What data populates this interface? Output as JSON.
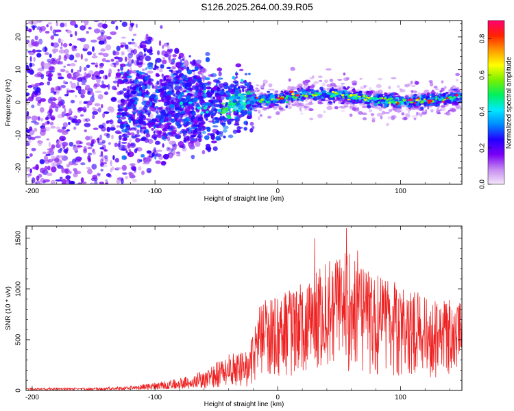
{
  "title": "S126.2025.264.00.39.R05",
  "chart_data": [
    {
      "type": "heatmap",
      "xlabel": "Height of straight line (km)",
      "ylabel": "Frequency (Hz)",
      "xlim": [
        -205,
        150
      ],
      "ylim": [
        -25,
        25
      ],
      "xticks": [
        -200,
        -100,
        0,
        100
      ],
      "yticks": [
        -20,
        -10,
        0,
        10,
        20
      ],
      "colorbar": {
        "label": "Normalized spectral amplitude",
        "range": [
          0.0,
          0.9
        ],
        "ticks": [
          0.0,
          0.2,
          0.4,
          0.6,
          0.8
        ],
        "colors": [
          "#f4e6fb",
          "#c58af0",
          "#7a00f5",
          "#2200ff",
          "#0088ff",
          "#00eaff",
          "#00f060",
          "#7af000",
          "#ffff00",
          "#ff9900",
          "#ff2200",
          "#ff0070"
        ]
      },
      "ridge": [
        {
          "x": -40,
          "f": -1.0
        },
        {
          "x": -25,
          "f": 0.5
        },
        {
          "x": 0,
          "f": 1.0
        },
        {
          "x": 25,
          "f": 2.5
        },
        {
          "x": 50,
          "f": 2.5
        },
        {
          "x": 75,
          "f": 1.0
        },
        {
          "x": 100,
          "f": 0.0
        },
        {
          "x": 125,
          "f": 0.8
        },
        {
          "x": 150,
          "f": 1.5
        }
      ]
    },
    {
      "type": "line",
      "xlabel": "Height of straight line (km)",
      "ylabel": "SNR (10 * v/v)",
      "xlim": [
        -205,
        150
      ],
      "ylim": [
        0,
        1620
      ],
      "xticks": [
        -200,
        -100,
        0,
        100
      ],
      "yticks": [
        0,
        500,
        1000,
        1500
      ],
      "color": "#ee2222",
      "envelope": [
        {
          "x": -205,
          "y": 25
        },
        {
          "x": -150,
          "y": 25
        },
        {
          "x": -120,
          "y": 45
        },
        {
          "x": -100,
          "y": 80
        },
        {
          "x": -80,
          "y": 120
        },
        {
          "x": -60,
          "y": 200
        },
        {
          "x": -50,
          "y": 280
        },
        {
          "x": -40,
          "y": 380
        },
        {
          "x": -25,
          "y": 390
        },
        {
          "x": -15,
          "y": 800
        },
        {
          "x": 0,
          "y": 850
        },
        {
          "x": 20,
          "y": 1000
        },
        {
          "x": 40,
          "y": 1150
        },
        {
          "x": 55,
          "y": 1250
        },
        {
          "x": 80,
          "y": 1050
        },
        {
          "x": 100,
          "y": 950
        },
        {
          "x": 120,
          "y": 850
        },
        {
          "x": 150,
          "y": 800
        }
      ],
      "peaks": [
        {
          "x": 30,
          "y": 1500
        },
        {
          "x": 56,
          "y": 1600
        },
        {
          "x": 65,
          "y": 1380
        }
      ]
    }
  ]
}
